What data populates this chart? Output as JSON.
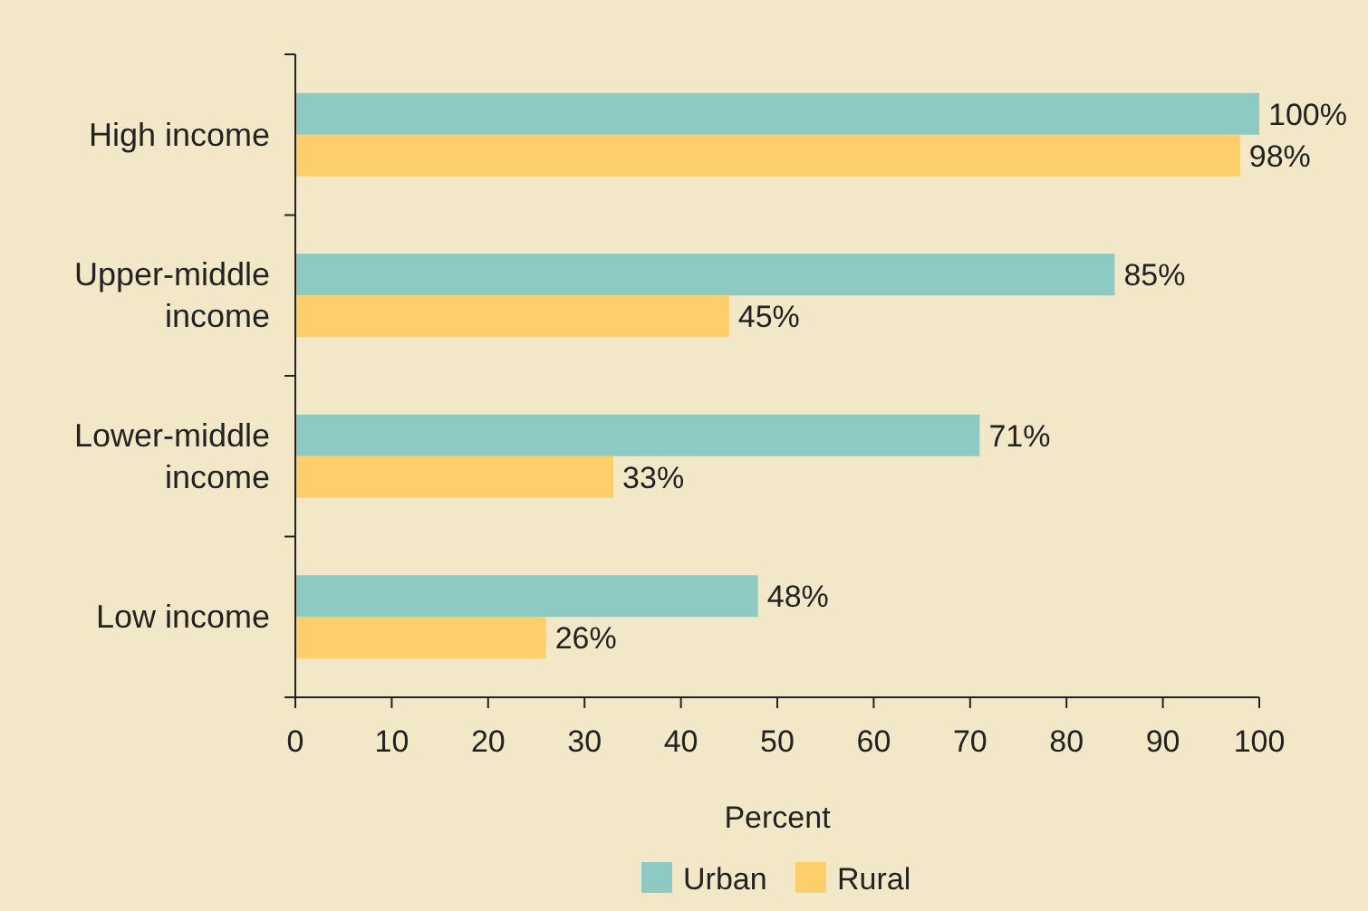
{
  "chart_data": {
    "type": "bar",
    "orientation": "horizontal",
    "categories": [
      "High income",
      "Upper-middle income",
      "Lower-middle income",
      "Low income"
    ],
    "series": [
      {
        "name": "Urban",
        "color": "#8ecac4",
        "values": [
          100,
          85,
          71,
          48
        ],
        "value_labels": [
          "100%",
          "85%",
          "71%",
          "48%"
        ]
      },
      {
        "name": "Rural",
        "color": "#fdcf6b",
        "values": [
          98,
          45,
          33,
          26
        ],
        "value_labels": [
          "98%",
          "45%",
          "33%",
          "26%"
        ]
      }
    ],
    "xlabel": "Percent",
    "xlim": [
      0,
      100
    ],
    "xticks": [
      0,
      10,
      20,
      30,
      40,
      50,
      60,
      70,
      80,
      90,
      100
    ],
    "grid": false,
    "legend": "bottom"
  }
}
